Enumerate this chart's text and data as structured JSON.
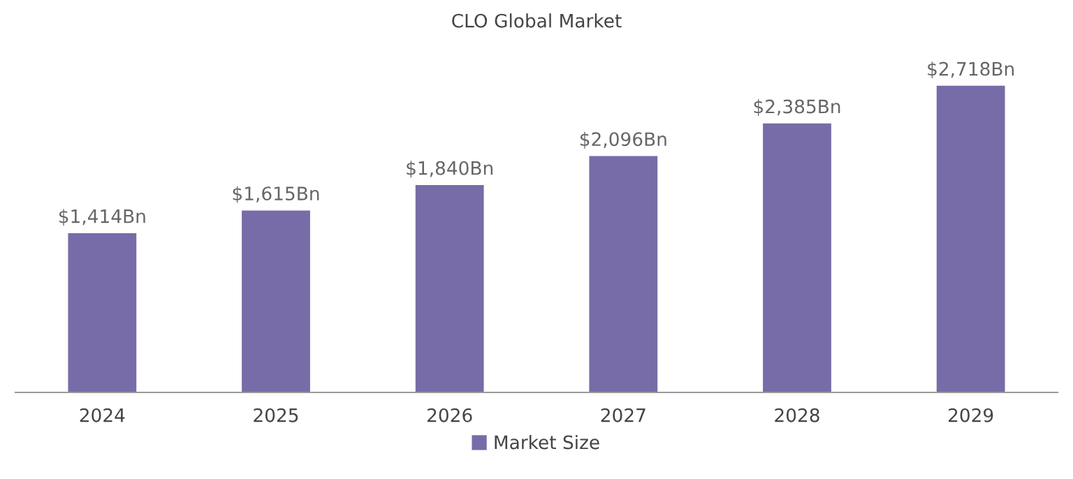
{
  "chart_data": {
    "type": "bar",
    "title": "CLO Global Market",
    "categories": [
      "2024",
      "2025",
      "2026",
      "2027",
      "2028",
      "2029"
    ],
    "series": [
      {
        "name": "Market Size",
        "color": "#776ca8",
        "values": [
          1414,
          1615,
          1840,
          2096,
          2385,
          2718
        ],
        "value_labels": [
          "$1,414Bn",
          "$1,615Bn",
          "$1,840Bn",
          "$2,096Bn",
          "$2,385Bn",
          "$2,718Bn"
        ]
      }
    ],
    "grid": false,
    "legend": "bottom",
    "tick_labels": "x"
  }
}
